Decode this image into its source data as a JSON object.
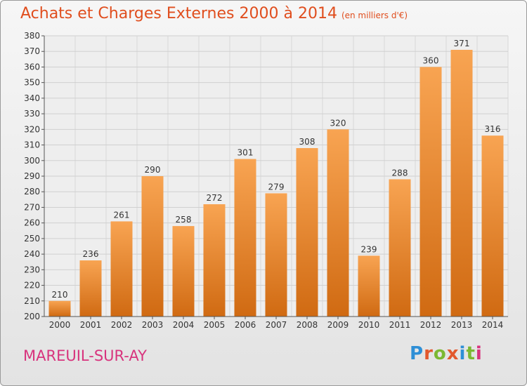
{
  "header": {
    "title": "Achats et Charges Externes 2000 à 2014",
    "subtitle": "(en milliers d'€)"
  },
  "footer": {
    "place": "MAREUIL-SUR-AY",
    "brand": "Proxiti",
    "brand_colors": [
      "#2e8fd6",
      "#e2582d",
      "#7bb832",
      "#e2582d",
      "#2e8fd6",
      "#7bb832",
      "#d8337d"
    ]
  },
  "chart_data": {
    "type": "bar",
    "title": "Achats et Charges Externes 2000 à 2014",
    "subtitle": "(en milliers d'€)",
    "categories": [
      "2000",
      "2001",
      "2002",
      "2003",
      "2004",
      "2005",
      "2006",
      "2007",
      "2008",
      "2009",
      "2010",
      "2011",
      "2012",
      "2013",
      "2014"
    ],
    "values": [
      210,
      236,
      261,
      290,
      258,
      272,
      301,
      279,
      308,
      320,
      239,
      288,
      360,
      371,
      316
    ],
    "ylim": [
      200,
      380
    ],
    "yticks": [
      200,
      210,
      220,
      230,
      240,
      250,
      260,
      270,
      280,
      290,
      300,
      310,
      320,
      330,
      340,
      350,
      360,
      370,
      380
    ],
    "grid": true,
    "bar_color_top": "#f8a452",
    "bar_color_bottom": "#d06a12",
    "title_color": "#e04e1e",
    "place_color": "#d8337d"
  }
}
